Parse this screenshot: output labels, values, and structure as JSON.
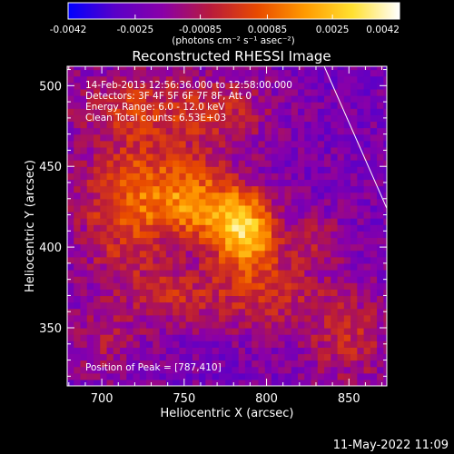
{
  "chart_data": {
    "type": "heatmap",
    "title": "Reconstructed RHESSI Image",
    "xlabel": "Heliocentric X (arcsec)",
    "ylabel": "Heliocentric Y (arcsec)",
    "xlim": [
      679,
      873
    ],
    "ylim": [
      314,
      512
    ],
    "x_ticks": [
      700,
      750,
      800,
      850
    ],
    "y_ticks": [
      350,
      400,
      450,
      500
    ],
    "colorbar": {
      "range": [
        -0.0042,
        0.0042
      ],
      "tick_values": [
        -0.0042,
        -0.0025,
        -0.00085,
        0.00085,
        0.0025,
        0.0042
      ],
      "tick_labels": [
        "-0.0042",
        "-0.0025",
        "-0.00085",
        "0.00085",
        "0.0025",
        "0.0042"
      ],
      "units_label": "(photons cm⁻² s⁻¹ asec⁻²)",
      "colors": [
        "#0000ff",
        "#5a00c8",
        "#8a00a8",
        "#b81a3c",
        "#e84a00",
        "#ff9a00",
        "#ffe030",
        "#ffffff"
      ]
    },
    "annotations": [
      "14-Feb-2013 12:56:36.000 to 12:58:00.000",
      "Detectors: 3F 4F 5F 6F 7F 8F, Att 0",
      "Energy Range: 6.0 - 12.0 keV",
      "Clean     Total counts: 6.53E+03"
    ],
    "peak_label": "Position of Peak = [787,410]",
    "peak": [
      787,
      410
    ],
    "limb_line": [
      [
        835,
        512
      ],
      [
        873,
        424
      ]
    ],
    "sources": [
      {
        "x": 787,
        "y": 410,
        "sx": 14,
        "sy": 16,
        "amp": 0.0042
      },
      {
        "x": 760,
        "y": 425,
        "sx": 18,
        "sy": 14,
        "amp": 0.0022
      },
      {
        "x": 735,
        "y": 440,
        "sx": 28,
        "sy": 22,
        "amp": 0.0018
      },
      {
        "x": 712,
        "y": 412,
        "sx": 20,
        "sy": 30,
        "amp": 0.0014
      },
      {
        "x": 720,
        "y": 488,
        "sx": 26,
        "sy": 16,
        "amp": 0.0016
      },
      {
        "x": 775,
        "y": 485,
        "sx": 20,
        "sy": 16,
        "amp": 0.0013
      },
      {
        "x": 800,
        "y": 372,
        "sx": 24,
        "sy": 18,
        "amp": 0.0015
      },
      {
        "x": 745,
        "y": 370,
        "sx": 22,
        "sy": 14,
        "amp": 0.0012
      },
      {
        "x": 850,
        "y": 345,
        "sx": 18,
        "sy": 22,
        "amp": 0.0014
      },
      {
        "x": 830,
        "y": 405,
        "sx": 12,
        "sy": 12,
        "amp": 0.0009
      },
      {
        "x": 700,
        "y": 340,
        "sx": 16,
        "sy": 16,
        "amp": 0.0008
      }
    ],
    "background_level": -0.0022,
    "pixel_size_arcsec": 4
  },
  "footer": {
    "date": "11-May-2022 11:09"
  }
}
